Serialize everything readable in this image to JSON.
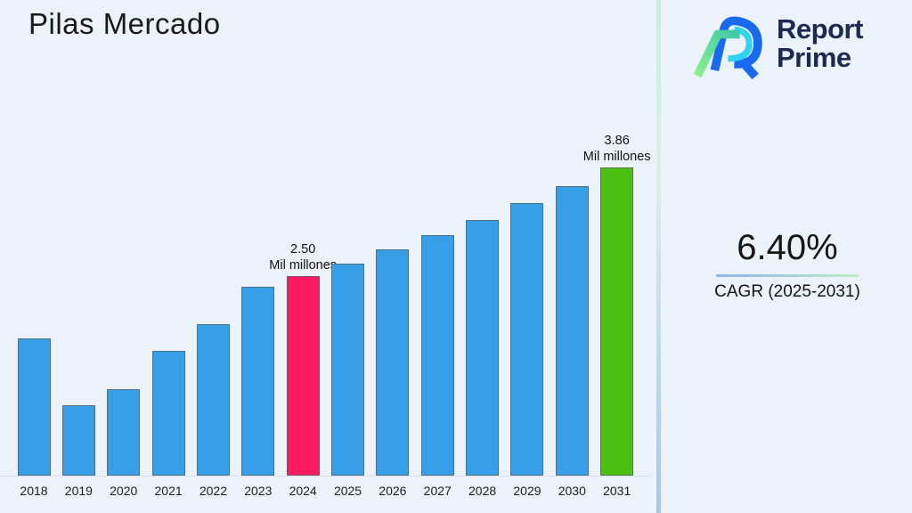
{
  "page": {
    "background": "#ECF2FA"
  },
  "header": {
    "title": "Pilas Mercado"
  },
  "logo": {
    "line1": "Report",
    "line2": "Prime",
    "text_color": "#1C2A52",
    "mark_colors": {
      "blue": "#1A6AEE",
      "cyan": "#2FD4F2",
      "green_light": "#8DF08E",
      "green_teal": "#3BC9A8"
    }
  },
  "chart_data": {
    "type": "bar",
    "title": "Pilas Mercado",
    "unit": "Mil millones",
    "categories": [
      "2018",
      "2019",
      "2020",
      "2021",
      "2022",
      "2023",
      "2024",
      "2025",
      "2026",
      "2027",
      "2028",
      "2029",
      "2030",
      "2031"
    ],
    "values": [
      1.72,
      0.88,
      1.08,
      1.56,
      1.9,
      2.37,
      2.5,
      2.66,
      2.83,
      3.01,
      3.2,
      3.41,
      3.63,
      3.86
    ],
    "bar_colors": {
      "default": "#379FE8",
      "highlight_2024": "#FA1B63",
      "highlight_2031": "#4CC010"
    },
    "labeled_bars": [
      {
        "year": "2024",
        "value_label": "2.50",
        "unit_label": "Mil millones"
      },
      {
        "year": "2031",
        "value_label": "3.86",
        "unit_label": "Mil millones"
      }
    ],
    "xlabel": "",
    "ylabel": "",
    "ylim": [
      0,
      4.2
    ],
    "grid": false,
    "legend": false
  },
  "cagr": {
    "value": "6.40%",
    "label": "CAGR (2025-2031)"
  }
}
